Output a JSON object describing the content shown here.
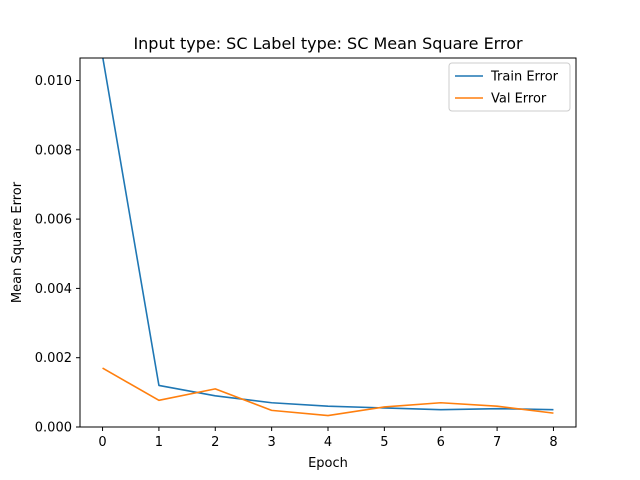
{
  "chart_data": {
    "type": "line",
    "title": "Input type: SC Label type: SC    Mean Square Error",
    "xlabel": "Epoch",
    "ylabel": "Mean Square Error",
    "x": [
      0,
      1,
      2,
      3,
      4,
      5,
      6,
      7,
      8
    ],
    "xlim": [
      -0.4,
      8.4
    ],
    "ylim": [
      0,
      0.01065
    ],
    "xticks": [
      0,
      1,
      2,
      3,
      4,
      5,
      6,
      7,
      8
    ],
    "xtick_labels": [
      "0",
      "1",
      "2",
      "3",
      "4",
      "5",
      "6",
      "7",
      "8"
    ],
    "yticks": [
      0,
      0.002,
      0.004,
      0.006,
      0.008,
      0.01
    ],
    "ytick_labels": [
      "0.000",
      "0.002",
      "0.004",
      "0.006",
      "0.008",
      "0.010"
    ],
    "grid": false,
    "legend_position": "top-right",
    "series": [
      {
        "name": "Train Error",
        "color": "#1f77b4",
        "values": [
          0.0107,
          0.0012,
          0.0009,
          0.0007,
          0.0006,
          0.00055,
          0.0005,
          0.00053,
          0.0005
        ]
      },
      {
        "name": "Val Error",
        "color": "#ff7f0e",
        "values": [
          0.0017,
          0.00077,
          0.0011,
          0.00048,
          0.00033,
          0.00058,
          0.0007,
          0.0006,
          0.0004
        ]
      }
    ]
  }
}
